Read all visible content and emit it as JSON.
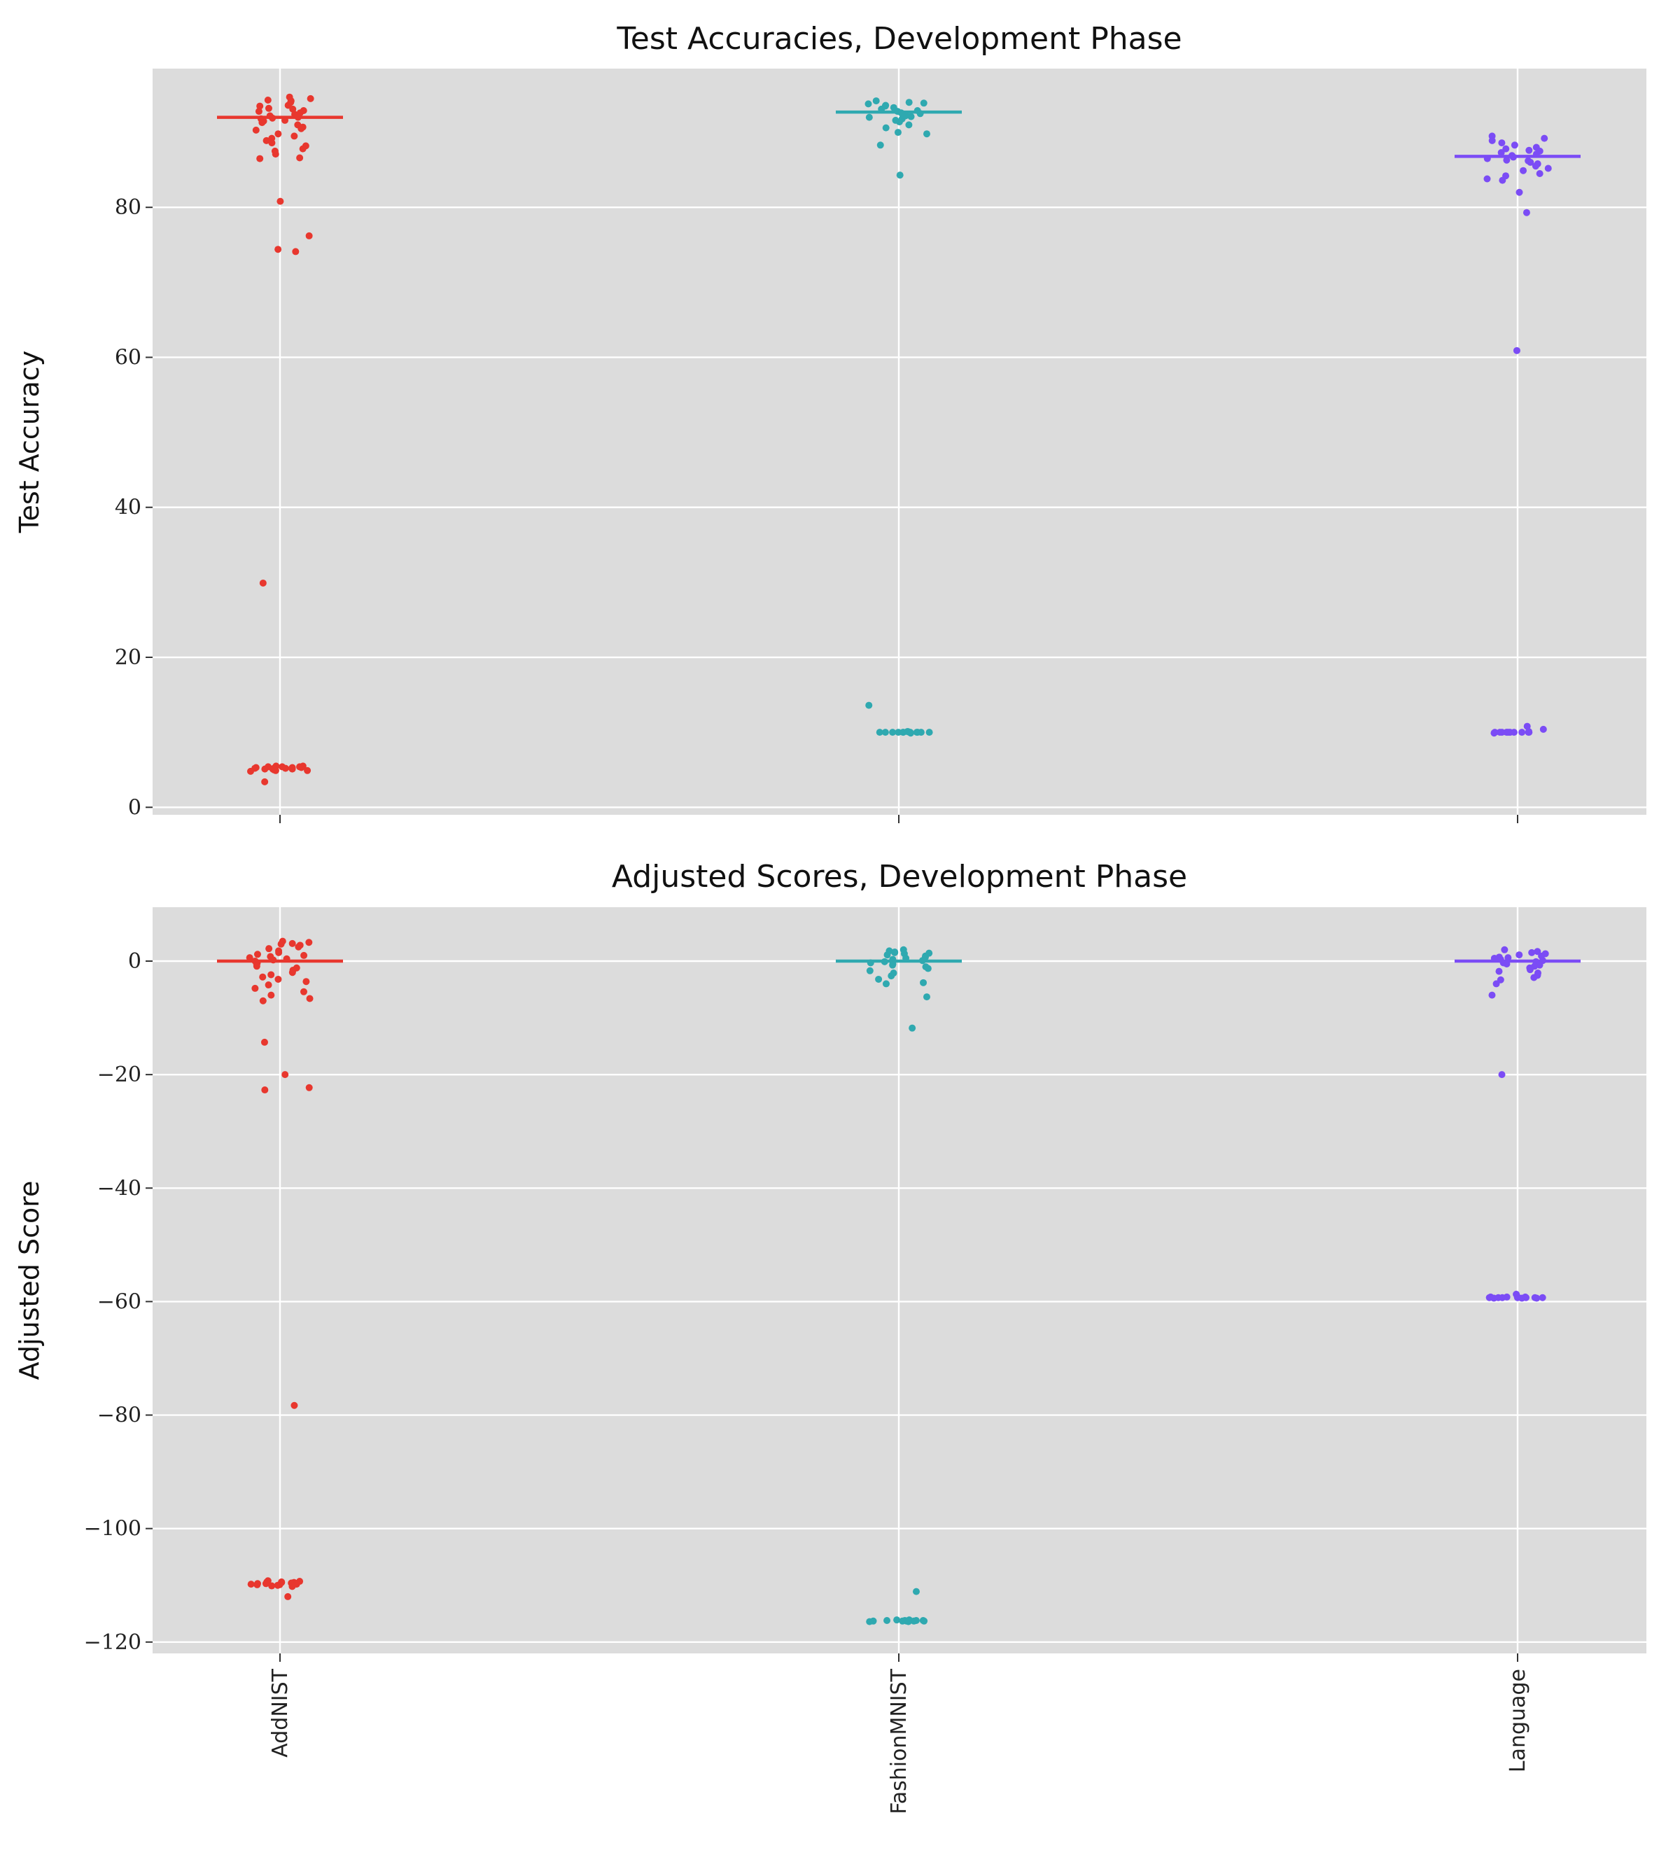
{
  "chart_data": [
    {
      "type": "scatter",
      "subtype": "strip",
      "title": "Test Accuracies, Development Phase",
      "xlabel": "",
      "ylabel": "Test Accuracy",
      "ylim": [
        -1,
        98.5
      ],
      "yticks": [
        0,
        20,
        40,
        60,
        80
      ],
      "grid": true,
      "categories": [
        "AddNIST",
        "FashionMNIST",
        "Language"
      ],
      "show_xtick_labels": false,
      "series": [
        {
          "category": "AddNIST",
          "color": "#e8372e",
          "median": 92.0,
          "values": [
            94.7,
            94.3,
            93.6,
            94.5,
            94.2,
            94.0,
            93.5,
            92.9,
            93.1,
            92.6,
            92.4,
            92.2,
            92.0,
            91.8,
            91.6,
            91.5,
            91.3,
            91.0,
            90.7,
            90.5,
            90.3,
            89.8,
            89.5,
            89.2,
            88.9,
            88.6,
            88.2,
            87.8,
            87.5,
            87.1,
            86.6,
            86.5,
            92.8,
            93.2,
            91.9,
            80.8,
            76.2,
            74.4,
            74.1,
            29.9,
            5.5,
            5.5,
            5.4,
            5.4,
            5.4,
            5.3,
            5.3,
            5.3,
            5.2,
            5.2,
            5.2,
            5.2,
            5.1,
            5.1,
            5.1,
            5.0,
            5.0,
            4.9,
            4.9,
            4.8,
            3.4
          ]
        },
        {
          "category": "FashionMNIST",
          "color": "#2fa9b0",
          "median": 92.7,
          "values": [
            94.2,
            94.0,
            93.8,
            93.6,
            93.5,
            93.3,
            93.1,
            92.9,
            92.8,
            92.6,
            92.5,
            92.3,
            92.1,
            92.0,
            91.8,
            91.6,
            91.4,
            91.0,
            90.6,
            90.0,
            89.8,
            88.3,
            84.3,
            93.9,
            92.2,
            13.6,
            10.1,
            10.1,
            10.0,
            10.0,
            10.0,
            10.0,
            10.0,
            10.0,
            10.0,
            10.0,
            10.0,
            10.0,
            10.0,
            10.0,
            9.9
          ]
        },
        {
          "category": "Language",
          "color": "#7b4cf5",
          "median": 86.8,
          "values": [
            89.5,
            89.2,
            88.9,
            88.6,
            88.3,
            88.0,
            87.8,
            87.5,
            87.3,
            87.1,
            86.9,
            86.7,
            86.5,
            86.3,
            86.0,
            85.8,
            85.5,
            85.2,
            84.9,
            84.5,
            84.2,
            83.8,
            83.6,
            82.0,
            79.3,
            87.6,
            86.2,
            60.9,
            10.8,
            10.4,
            10.1,
            10.0,
            10.0,
            10.0,
            10.0,
            10.0,
            10.0,
            10.0,
            10.0,
            10.0,
            10.0,
            10.0,
            9.9
          ]
        }
      ]
    },
    {
      "type": "scatter",
      "subtype": "strip",
      "title": "Adjusted Scores, Development Phase",
      "xlabel": "",
      "ylabel": "Adjusted Score",
      "ylim": [
        -122,
        9.5
      ],
      "yticks": [
        0,
        -20,
        -40,
        -60,
        -80,
        -100,
        -120
      ],
      "grid": true,
      "categories": [
        "AddNIST",
        "FashionMNIST",
        "Language"
      ],
      "show_xtick_labels": true,
      "series": [
        {
          "category": "AddNIST",
          "color": "#e8372e",
          "median": 0,
          "values": [
            3.5,
            3.3,
            3.1,
            3.0,
            2.8,
            2.5,
            2.2,
            1.8,
            1.5,
            1.2,
            1.0,
            0.8,
            0.6,
            0.4,
            0.2,
            0.0,
            -0.3,
            -0.6,
            -0.9,
            -1.2,
            -1.6,
            -2.0,
            -2.4,
            -2.8,
            -3.2,
            -3.6,
            -4.2,
            -4.8,
            -5.4,
            -6.0,
            -6.6,
            -7.0,
            -14.3,
            -20.0,
            -22.3,
            -22.7,
            -78.3,
            -109.2,
            -109.3,
            -109.4,
            -109.4,
            -109.5,
            -109.5,
            -109.6,
            -109.6,
            -109.7,
            -109.7,
            -109.8,
            -109.8,
            -109.9,
            -109.9,
            -110.0,
            -110.1,
            -110.2,
            -112.0
          ]
        },
        {
          "category": "FashionMNIST",
          "color": "#2fa9b0",
          "median": 0,
          "values": [
            2.0,
            1.8,
            1.6,
            1.5,
            1.3,
            1.1,
            0.9,
            0.7,
            0.5,
            0.3,
            0.1,
            -0.1,
            -0.3,
            -0.5,
            -0.7,
            -1.0,
            -1.3,
            -1.7,
            -2.1,
            -2.6,
            -3.2,
            -3.8,
            -4.0,
            -6.3,
            -11.8,
            1.4,
            -111.1,
            -116.1,
            -116.1,
            -116.2,
            -116.2,
            -116.2,
            -116.2,
            -116.3,
            -116.3,
            -116.3,
            -116.3,
            -116.3,
            -116.4,
            -116.4
          ]
        },
        {
          "category": "Language",
          "color": "#7b4cf5",
          "median": 0,
          "values": [
            2.0,
            1.7,
            1.5,
            1.3,
            1.1,
            0.9,
            0.7,
            0.5,
            0.3,
            0.1,
            -0.1,
            -0.3,
            -0.5,
            -0.7,
            -0.9,
            -1.2,
            -1.5,
            -1.8,
            -2.1,
            -2.5,
            -2.9,
            -3.3,
            -4.0,
            -6.0,
            -20.0,
            0.6,
            -58.7,
            -59.1,
            -59.2,
            -59.2,
            -59.2,
            -59.3,
            -59.3,
            -59.3,
            -59.3,
            -59.3,
            -59.3,
            -59.3,
            -59.4,
            -59.4,
            -59.4
          ]
        }
      ]
    }
  ]
}
